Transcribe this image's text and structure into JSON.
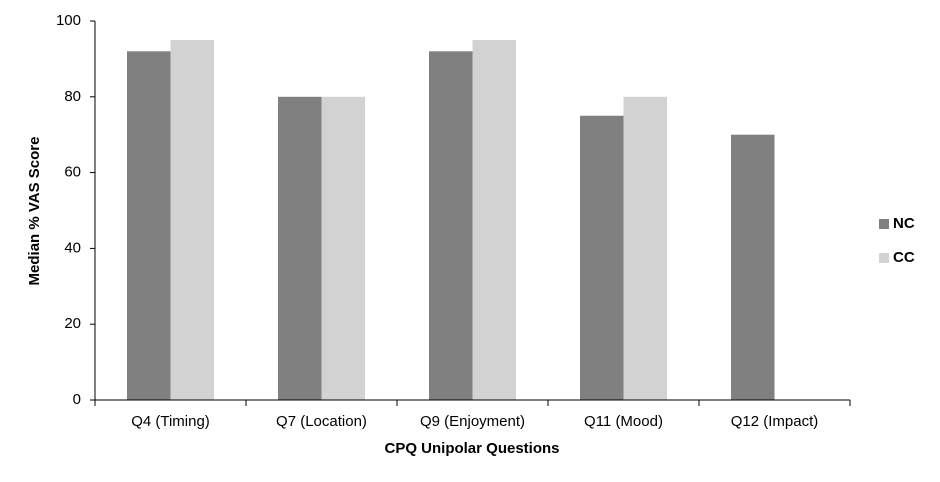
{
  "chart_data": {
    "type": "bar",
    "x_label": "CPQ Unipolar Questions",
    "y_label": "Median % VAS Score",
    "categories": [
      "Q4 (Timing)",
      "Q7 (Location)",
      "Q9 (Enjoyment)",
      "Q11 (Mood)",
      "Q12 (Impact)"
    ],
    "series": [
      {
        "name": "NC",
        "color": "#808080",
        "values": [
          92,
          80,
          92,
          75,
          70
        ]
      },
      {
        "name": "CC",
        "color": "#d3d2d3",
        "values": [
          95,
          80,
          95,
          80,
          null
        ]
      }
    ],
    "ylim": [
      0,
      100
    ],
    "yticks": [
      0,
      20,
      40,
      60,
      80,
      100
    ],
    "grid": false,
    "legend": "right"
  }
}
